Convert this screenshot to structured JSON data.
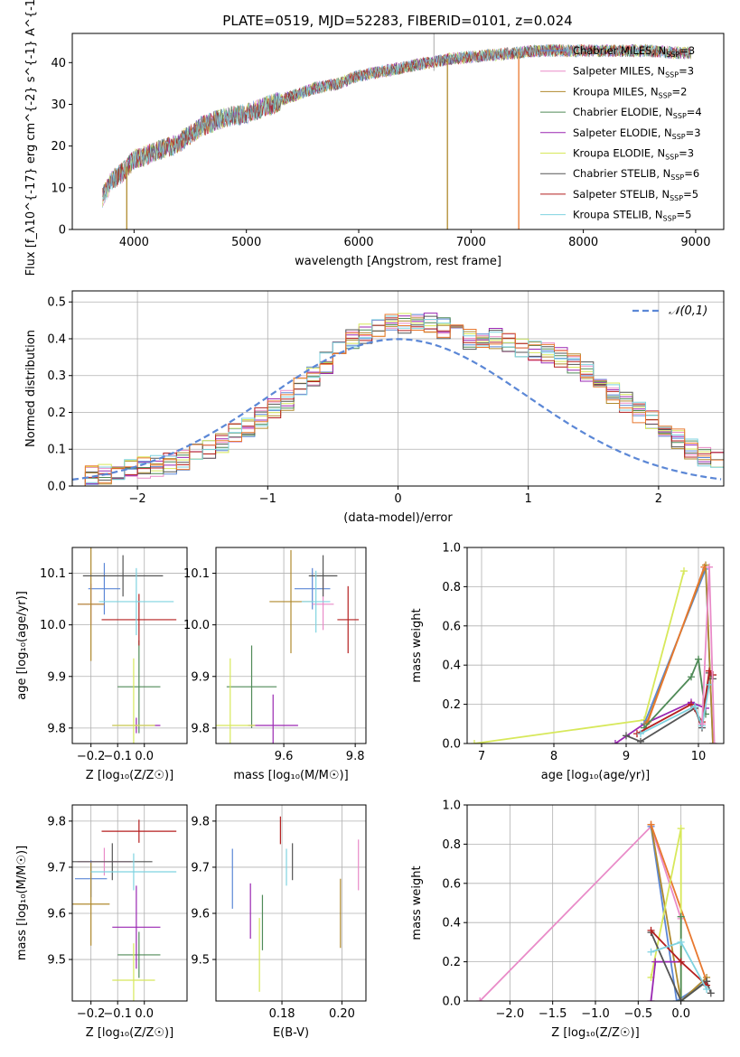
{
  "title": "PLATE=0519, MJD=52283, FIBERID=0101, z=0.024",
  "legend_labels": [
    "Chabrier MILES, N_{SSP}=3",
    "Salpeter MILES, N_{SSP}=3",
    "Kroupa MILES, N_{SSP}=2",
    "Chabrier ELODIE, N_{SSP}=4",
    "Salpeter ELODIE, N_{SSP}=3",
    "Kroupa ELODIE, N_{SSP}=3",
    "Chabrier STELIB, N_{SSP}=6",
    "Salpeter STELIB, N_{SSP}=5",
    "Kroupa STELIB, N_{SSP}=5"
  ],
  "colors": {
    "Chabrier MILES": "#5b87d6",
    "Salpeter MILES": "#e98bc8",
    "Kroupa MILES": "#b08a2e",
    "Chabrier ELODIE": "#4f8a57",
    "Salpeter ELODIE": "#9a27b2",
    "Kroupa ELODIE": "#d7e85a",
    "Chabrier STELIB": "#555555",
    "Salpeter STELIB": "#b51f1f",
    "Kroupa STELIB": "#7fd3e0",
    "hist_extra_orange": "#e8782f",
    "gauss": "#5b87d6"
  },
  "chart_data": [
    {
      "id": "spectrum",
      "type": "line",
      "xlabel": "wavelength [Angstrom, rest frame]",
      "ylabel": "Flux [f_λ10^{-17} erg cm^{-2} s^{-1} A^{-1}]",
      "xlim": [
        3450,
        9250
      ],
      "ylim": [
        0,
        47
      ],
      "xticks": [
        4000,
        5000,
        6000,
        7000,
        8000,
        9000
      ],
      "yticks": [
        0,
        10,
        20,
        30,
        40
      ],
      "continuum": [
        [
          3720,
          8
        ],
        [
          3800,
          12
        ],
        [
          3900,
          14
        ],
        [
          4000,
          17
        ],
        [
          4200,
          19
        ],
        [
          4400,
          21
        ],
        [
          4600,
          25
        ],
        [
          4800,
          27
        ],
        [
          5000,
          28
        ],
        [
          5200,
          30
        ],
        [
          5400,
          32
        ],
        [
          5600,
          34
        ],
        [
          5800,
          35
        ],
        [
          6000,
          37
        ],
        [
          6200,
          38
        ],
        [
          6400,
          39
        ],
        [
          6600,
          40
        ],
        [
          6800,
          41
        ],
        [
          7000,
          41.5
        ],
        [
          7200,
          42
        ],
        [
          7400,
          42.5
        ],
        [
          7600,
          43
        ],
        [
          7800,
          43
        ],
        [
          8000,
          43
        ],
        [
          8200,
          43
        ],
        [
          8400,
          43
        ],
        [
          8600,
          43
        ],
        [
          8800,
          42.5
        ],
        [
          8960,
          42.5
        ]
      ],
      "dips": [
        [
          3935,
          0
        ],
        [
          6790,
          0
        ],
        [
          7425,
          0
        ]
      ],
      "spike": [
        6670,
        47
      ]
    },
    {
      "id": "residuals",
      "type": "area",
      "xlabel": "(data-model)/error",
      "ylabel": "Normed distribution",
      "xlim": [
        -2.5,
        2.5
      ],
      "ylim": [
        0,
        0.53
      ],
      "xticks": [
        -2,
        -1,
        0,
        1,
        2
      ],
      "yticks": [
        0.0,
        0.1,
        0.2,
        0.3,
        0.4,
        0.5
      ],
      "gauss_label": "𝒩(0,1)",
      "bin_width": 0.1,
      "bin_start": -2.5,
      "base_hist": [
        0.025,
        0.03,
        0.035,
        0.04,
        0.045,
        0.05,
        0.055,
        0.06,
        0.07,
        0.085,
        0.1,
        0.12,
        0.14,
        0.16,
        0.185,
        0.21,
        0.235,
        0.265,
        0.3,
        0.335,
        0.365,
        0.395,
        0.415,
        0.43,
        0.44,
        0.445,
        0.445,
        0.44,
        0.43,
        0.415,
        0.4,
        0.405,
        0.4,
        0.39,
        0.38,
        0.37,
        0.36,
        0.35,
        0.33,
        0.31,
        0.28,
        0.25,
        0.225,
        0.2,
        0.175,
        0.15,
        0.125,
        0.1,
        0.08,
        0.07,
        0.065,
        0.06,
        0.055,
        0.05,
        0.045,
        0.04,
        0.035,
        0.03,
        0.025,
        0.02
      ]
    },
    {
      "id": "age_vs_z",
      "type": "scatter",
      "xlabel": "Z [log₁₀(Z/Z☉)]",
      "ylabel": "age  [log₁₀(age/yr)]",
      "xlim": [
        -0.27,
        0.16
      ],
      "ylim": [
        9.77,
        10.15
      ],
      "xticks": [
        -0.2,
        -0.1,
        0.0
      ],
      "yticks": [
        9.8,
        9.9,
        10.0,
        10.1
      ],
      "points": [
        {
          "s": "Chabrier MILES",
          "x": -0.15,
          "y": 10.07,
          "xe": 0.06,
          "ye": 0.05
        },
        {
          "s": "Salpeter MILES",
          "x": -0.2,
          "y": 10.04,
          "xe": 0.05,
          "ye": 0.04
        },
        {
          "s": "Kroupa MILES",
          "x": -0.2,
          "y": 10.04,
          "xe": 0.05,
          "ye": 0.11
        },
        {
          "s": "Chabrier ELODIE",
          "x": -0.02,
          "y": 9.88,
          "xe": 0.08,
          "ye": 0.09
        },
        {
          "s": "Salpeter ELODIE",
          "x": -0.03,
          "y": 9.805,
          "xe": 0.09,
          "ye": 0.015
        },
        {
          "s": "Kroupa ELODIE",
          "x": -0.04,
          "y": 9.805,
          "xe": 0.08,
          "ye": 0.13
        },
        {
          "s": "Chabrier STELIB",
          "x": -0.08,
          "y": 10.095,
          "xe": 0.15,
          "ye": 0.04
        },
        {
          "s": "Salpeter STELIB",
          "x": -0.02,
          "y": 10.01,
          "xe": 0.14,
          "ye": 0.05
        },
        {
          "s": "Kroupa STELIB",
          "x": -0.03,
          "y": 10.045,
          "xe": 0.14,
          "ye": 0.065
        }
      ]
    },
    {
      "id": "age_vs_mass",
      "type": "scatter",
      "xlabel": "mass [log₁₀(M/M☉)]",
      "ylabel": "",
      "xlim": [
        9.41,
        9.83
      ],
      "ylim": [
        9.77,
        10.15
      ],
      "xticks": [
        9.6,
        9.8
      ],
      "yticks": [
        9.8,
        9.9,
        10.0,
        10.1
      ],
      "points": [
        {
          "s": "Chabrier MILES",
          "x": 9.68,
          "y": 10.07,
          "xe": 0.05,
          "ye": 0.04
        },
        {
          "s": "Salpeter MILES",
          "x": 9.71,
          "y": 10.04,
          "xe": 0.03,
          "ye": 0.05
        },
        {
          "s": "Kroupa MILES",
          "x": 9.62,
          "y": 10.045,
          "xe": 0.06,
          "ye": 0.1
        },
        {
          "s": "Chabrier ELODIE",
          "x": 9.51,
          "y": 9.88,
          "xe": 0.07,
          "ye": 0.08
        },
        {
          "s": "Salpeter ELODIE",
          "x": 9.57,
          "y": 9.805,
          "xe": 0.07,
          "ye": 0.06
        },
        {
          "s": "Kroupa ELODIE",
          "x": 9.45,
          "y": 9.805,
          "xe": 0.07,
          "ye": 0.13
        },
        {
          "s": "Chabrier STELIB",
          "x": 9.71,
          "y": 10.095,
          "xe": 0.04,
          "ye": 0.04
        },
        {
          "s": "Salpeter STELIB",
          "x": 9.78,
          "y": 10.01,
          "xe": 0.03,
          "ye": 0.065
        },
        {
          "s": "Kroupa STELIB",
          "x": 9.69,
          "y": 10.045,
          "xe": 0.04,
          "ye": 0.06
        }
      ]
    },
    {
      "id": "weight_vs_age",
      "type": "line",
      "xlabel": "age  [log₁₀(age/yr)]",
      "ylabel": "mass weight",
      "xlim": [
        6.8,
        10.35
      ],
      "ylim": [
        0,
        1.0
      ],
      "xticks": [
        7,
        8,
        9,
        10
      ],
      "yticks": [
        0.0,
        0.2,
        0.4,
        0.6,
        0.8,
        1.0
      ],
      "series": [
        {
          "s": "Kroupa ELODIE",
          "x": [
            6.9,
            9.25,
            9.8
          ],
          "y": [
            0.0,
            0.12,
            0.88
          ]
        },
        {
          "s": "Salpeter ELODIE",
          "x": [
            8.85,
            9.25,
            9.9,
            10.1
          ],
          "y": [
            0.0,
            0.1,
            0.21,
            0.18
          ]
        },
        {
          "s": "Chabrier MILES",
          "x": [
            9.25,
            10.1,
            10.2
          ],
          "y": [
            0.1,
            0.89,
            0.0
          ]
        },
        {
          "s": "Kroupa MILES",
          "x": [
            9.28,
            10.1,
            10.2
          ],
          "y": [
            0.1,
            0.91,
            0.0
          ]
        },
        {
          "s": "hist_extra_orange",
          "x": [
            9.3,
            10.08
          ],
          "y": [
            0.11,
            0.9
          ]
        },
        {
          "s": "Chabrier ELODIE",
          "x": [
            9.25,
            9.9,
            10.0,
            10.1
          ],
          "y": [
            0.08,
            0.34,
            0.43,
            0.15
          ]
        },
        {
          "s": "Chabrier STELIB",
          "x": [
            9.0,
            9.2,
            9.95,
            10.05,
            10.15,
            10.2
          ],
          "y": [
            0.04,
            0.01,
            0.18,
            0.08,
            0.36,
            0.33
          ]
        },
        {
          "s": "Salpeter STELIB",
          "x": [
            9.15,
            9.9,
            10.05,
            10.15,
            10.2
          ],
          "y": [
            0.05,
            0.2,
            0.11,
            0.37,
            0.35
          ]
        },
        {
          "s": "Kroupa STELIB",
          "x": [
            9.2,
            9.95,
            10.05,
            10.15
          ],
          "y": [
            0.05,
            0.19,
            0.09,
            0.3
          ]
        },
        {
          "s": "Salpeter MILES",
          "x": [
            10.05,
            10.15,
            10.22
          ],
          "y": [
            0.1,
            0.9,
            0.0
          ]
        }
      ]
    },
    {
      "id": "mass_vs_z",
      "type": "scatter",
      "xlabel": "Z [log₁₀(Z/Z☉)]",
      "ylabel": "mass [log₁₀(M/M☉)]",
      "xlim": [
        -0.27,
        0.16
      ],
      "ylim": [
        9.41,
        9.835
      ],
      "xticks": [
        -0.2,
        -0.1,
        0.0
      ],
      "yticks": [
        9.5,
        9.6,
        9.7,
        9.8
      ],
      "points": [
        {
          "s": "Chabrier MILES",
          "x": -0.2,
          "y": 9.675,
          "xe": 0.06,
          "ye": 0.04
        },
        {
          "s": "Salpeter MILES",
          "x": -0.15,
          "y": 9.712,
          "xe": 0.1,
          "ye": 0.03
        },
        {
          "s": "Kroupa MILES",
          "x": -0.2,
          "y": 9.62,
          "xe": 0.07,
          "ye": 0.09
        },
        {
          "s": "Chabrier ELODIE",
          "x": -0.02,
          "y": 9.51,
          "xe": 0.08,
          "ye": 0.05
        },
        {
          "s": "Salpeter ELODIE",
          "x": -0.03,
          "y": 9.57,
          "xe": 0.09,
          "ye": 0.09
        },
        {
          "s": "Kroupa ELODIE",
          "x": -0.04,
          "y": 9.455,
          "xe": 0.08,
          "ye": 0.08
        },
        {
          "s": "Chabrier STELIB",
          "x": -0.12,
          "y": 9.712,
          "xe": 0.15,
          "ye": 0.04
        },
        {
          "s": "Salpeter STELIB",
          "x": -0.02,
          "y": 9.778,
          "xe": 0.14,
          "ye": 0.025
        },
        {
          "s": "Kroupa STELIB",
          "x": -0.04,
          "y": 9.69,
          "xe": 0.16,
          "ye": 0.04
        }
      ]
    },
    {
      "id": "mass_vs_ebv",
      "type": "scatter",
      "xlabel": "E(B-V)",
      "ylabel": "",
      "xlim": [
        0.158,
        0.208
      ],
      "ylim": [
        9.41,
        9.835
      ],
      "xticks": [
        0.18,
        0.2
      ],
      "yticks": [
        9.5,
        9.6,
        9.7,
        9.8
      ],
      "points": [
        {
          "s": "Chabrier MILES",
          "x": 0.1635,
          "y": 9.675,
          "xe": 0,
          "ye": 0.065
        },
        {
          "s": "Salpeter MILES",
          "x": 0.2055,
          "y": 9.705,
          "xe": 0,
          "ye": 0.055
        },
        {
          "s": "Kroupa MILES",
          "x": 0.1995,
          "y": 9.6,
          "xe": 0,
          "ye": 0.075
        },
        {
          "s": "Chabrier ELODIE",
          "x": 0.1735,
          "y": 9.58,
          "xe": 0,
          "ye": 0.06
        },
        {
          "s": "Salpeter ELODIE",
          "x": 0.1695,
          "y": 9.605,
          "xe": 0,
          "ye": 0.06
        },
        {
          "s": "Kroupa ELODIE",
          "x": 0.1725,
          "y": 9.51,
          "xe": 0,
          "ye": 0.08
        },
        {
          "s": "Chabrier STELIB",
          "x": 0.1835,
          "y": 9.712,
          "xe": 0,
          "ye": 0.04
        },
        {
          "s": "Salpeter STELIB",
          "x": 0.1795,
          "y": 9.78,
          "xe": 0,
          "ye": 0.03
        },
        {
          "s": "Kroupa STELIB",
          "x": 0.1815,
          "y": 9.7,
          "xe": 0,
          "ye": 0.04
        }
      ]
    },
    {
      "id": "weight_vs_z",
      "type": "line",
      "xlabel": "Z [log₁₀(Z/Z☉)]",
      "ylabel": "mass weight",
      "xlim": [
        -2.5,
        0.5
      ],
      "ylim": [
        0,
        1.0
      ],
      "xticks": [
        -2.0,
        -1.5,
        -1.0,
        -0.5,
        0.0
      ],
      "yticks": [
        0.0,
        0.2,
        0.4,
        0.6,
        0.8,
        1.0
      ],
      "series": [
        {
          "s": "Salpeter MILES",
          "x": [
            -2.35,
            -0.35,
            0.0
          ],
          "y": [
            0.0,
            0.89,
            0.42
          ]
        },
        {
          "s": "Chabrier MILES",
          "x": [
            -0.35,
            -0.05,
            0.3
          ],
          "y": [
            0.89,
            0.0,
            0.1
          ]
        },
        {
          "s": "Kroupa MILES",
          "x": [
            -0.35,
            0.0,
            0.3
          ],
          "y": [
            0.9,
            0.0,
            0.12
          ]
        },
        {
          "s": "hist_extra_orange",
          "x": [
            -0.35,
            0.3
          ],
          "y": [
            0.9,
            0.1
          ]
        },
        {
          "s": "Kroupa ELODIE",
          "x": [
            -0.35,
            0.0,
            0.0
          ],
          "y": [
            0.12,
            0.88,
            0.0
          ]
        },
        {
          "s": "Chabrier ELODIE",
          "x": [
            0.0,
            0.0,
            0.3
          ],
          "y": [
            0.43,
            0.0,
            0.1
          ]
        },
        {
          "s": "Salpeter ELODIE",
          "x": [
            -0.35,
            -0.3,
            0.0
          ],
          "y": [
            0.0,
            0.2,
            0.2
          ]
        },
        {
          "s": "Chabrier STELIB",
          "x": [
            -0.35,
            0.0,
            0.3,
            0.35
          ],
          "y": [
            0.35,
            0.0,
            0.1,
            0.04
          ]
        },
        {
          "s": "Salpeter STELIB",
          "x": [
            -0.35,
            0.0,
            0.3
          ],
          "y": [
            0.36,
            0.2,
            0.08
          ]
        },
        {
          "s": "Kroupa STELIB",
          "x": [
            -0.35,
            0.0,
            0.3
          ],
          "y": [
            0.25,
            0.3,
            0.06
          ]
        }
      ]
    }
  ]
}
